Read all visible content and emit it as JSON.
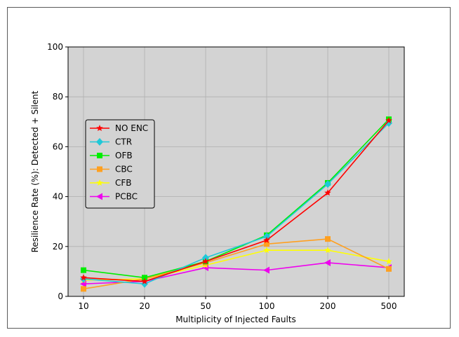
{
  "chart_data": {
    "type": "line",
    "title": "",
    "xlabel": "Multiplicity of Injected Faults",
    "ylabel": "Resilience Rate (%): Detected + Silent",
    "categories": [
      "10",
      "20",
      "50",
      "100",
      "200",
      "500"
    ],
    "ylim": [
      0,
      100
    ],
    "yticks": [
      "0",
      "20",
      "40",
      "60",
      "80",
      "100"
    ],
    "grid": true,
    "legend_position": "center-left",
    "series": [
      {
        "name": "NO ENC",
        "color": "#ff0000",
        "marker": "star",
        "values": [
          7.5,
          6,
          14,
          22.5,
          41.5,
          70.5
        ]
      },
      {
        "name": "CTR",
        "color": "#1fc8d8",
        "marker": "diamond",
        "values": [
          7,
          5,
          15.5,
          24,
          45,
          69.5
        ]
      },
      {
        "name": "OFB",
        "color": "#00ee00",
        "marker": "square",
        "values": [
          10.5,
          7.5,
          14,
          24.5,
          45.5,
          71
        ]
      },
      {
        "name": "CBC",
        "color": "#ffa020",
        "marker": "square",
        "values": [
          3,
          7,
          13.5,
          21,
          23,
          11
        ]
      },
      {
        "name": "CFB",
        "color": "#ffff00",
        "marker": "star",
        "values": [
          6.5,
          7,
          12.5,
          18.5,
          18.5,
          14
        ]
      },
      {
        "name": "PCBC",
        "color": "#ee00ee",
        "marker": "triangle-left",
        "values": [
          5,
          6,
          11.5,
          10.5,
          13.5,
          11.5
        ]
      }
    ]
  }
}
